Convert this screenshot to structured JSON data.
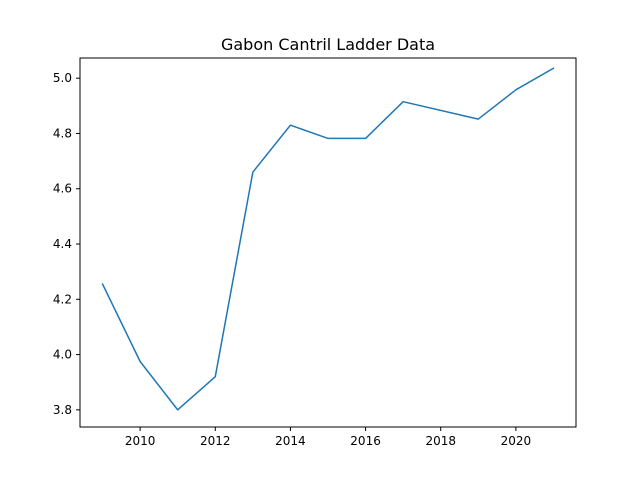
{
  "chart_data": {
    "type": "line",
    "title": "Gabon Cantril Ladder Data",
    "xlabel": "",
    "ylabel": "",
    "xlim": [
      2008.4,
      2021.6
    ],
    "ylim": [
      3.738,
      5.073
    ],
    "xticks": [
      2010,
      2012,
      2014,
      2016,
      2018,
      2020
    ],
    "yticks": [
      3.8,
      4.0,
      4.2,
      4.4,
      4.6,
      4.8,
      5.0
    ],
    "grid": false,
    "series": [
      {
        "color": "#1f77b4",
        "x": [
          2009,
          2010,
          2011,
          2012,
          2013,
          2014,
          2015,
          2016,
          2017,
          2019,
          2020,
          2021
        ],
        "y": [
          4.255,
          3.975,
          3.8,
          3.92,
          4.66,
          4.83,
          4.782,
          4.782,
          4.915,
          4.852,
          4.958,
          5.036
        ]
      }
    ]
  }
}
